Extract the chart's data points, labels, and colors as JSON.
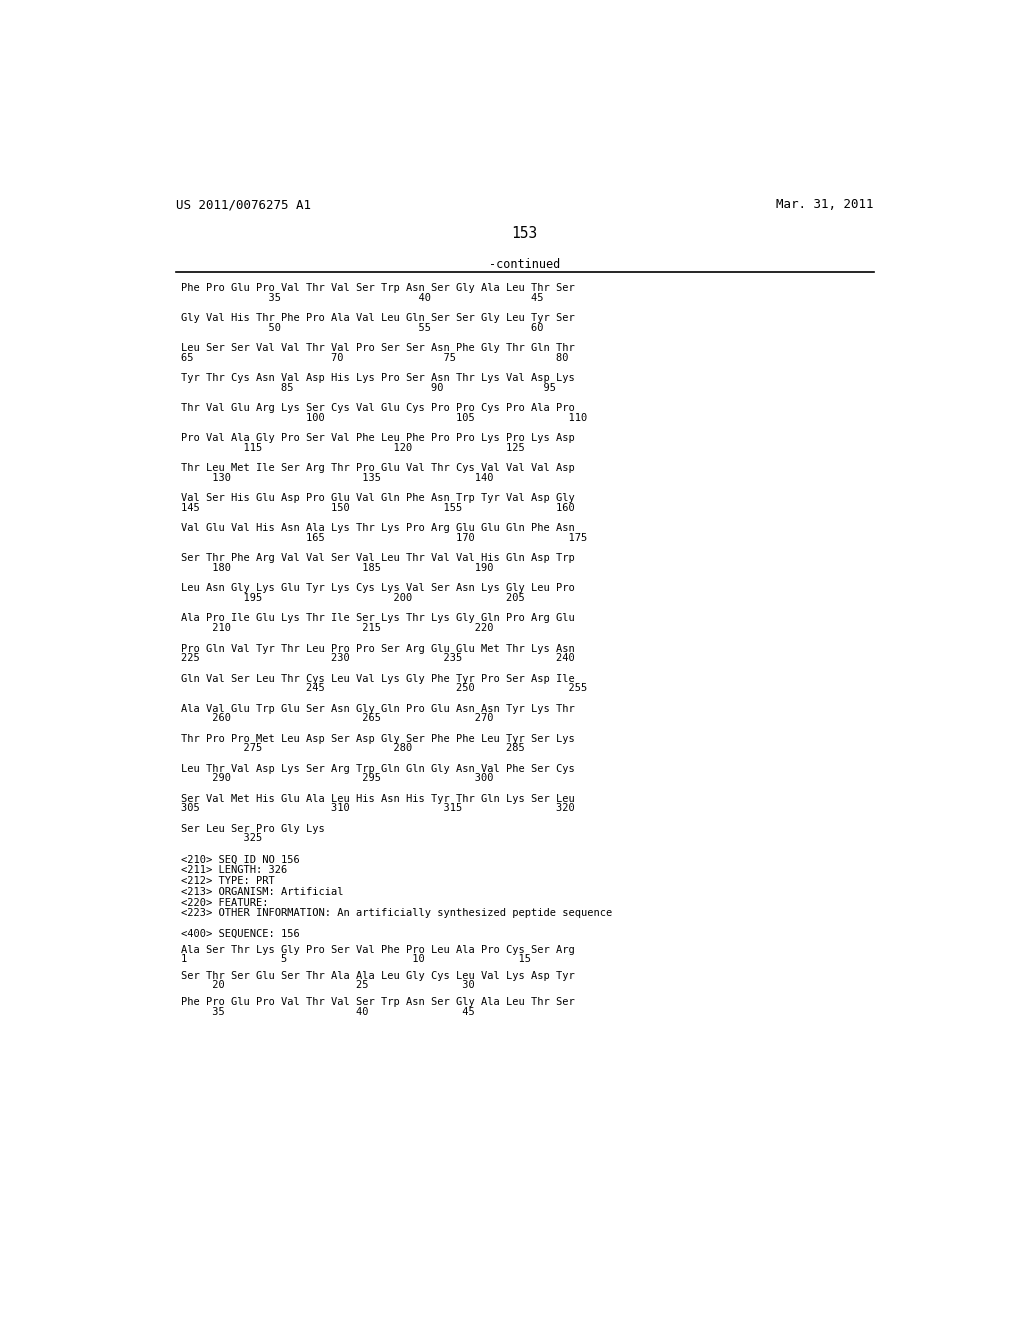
{
  "header_left": "US 2011/0076275 A1",
  "header_right": "Mar. 31, 2011",
  "page_number": "153",
  "continued_label": "-continued",
  "background_color": "#ffffff",
  "text_color": "#000000",
  "seq_font_size": 7.5,
  "header_font_size": 9.0,
  "page_font_size": 10.5,
  "seq_blocks": [
    [
      "Phe Pro Glu Pro Val Thr Val Ser Trp Asn Ser Gly Ala Leu Thr Ser",
      "              35                      40                45"
    ],
    [
      "Gly Val His Thr Phe Pro Ala Val Leu Gln Ser Ser Gly Leu Tyr Ser",
      "              50                      55                60"
    ],
    [
      "Leu Ser Ser Val Val Thr Val Pro Ser Ser Asn Phe Gly Thr Gln Thr",
      "65                      70                75                80"
    ],
    [
      "Tyr Thr Cys Asn Val Asp His Lys Pro Ser Asn Thr Lys Val Asp Lys",
      "                85                      90                95"
    ],
    [
      "Thr Val Glu Arg Lys Ser Cys Val Glu Cys Pro Pro Cys Pro Ala Pro",
      "                    100                     105               110"
    ],
    [
      "Pro Val Ala Gly Pro Ser Val Phe Leu Phe Pro Pro Lys Pro Lys Asp",
      "          115                     120               125"
    ],
    [
      "Thr Leu Met Ile Ser Arg Thr Pro Glu Val Thr Cys Val Val Val Asp",
      "     130                     135               140"
    ],
    [
      "Val Ser His Glu Asp Pro Glu Val Gln Phe Asn Trp Tyr Val Asp Gly",
      "145                     150               155               160"
    ],
    [
      "Val Glu Val His Asn Ala Lys Thr Lys Pro Arg Glu Glu Gln Phe Asn",
      "                    165                     170               175"
    ],
    [
      "Ser Thr Phe Arg Val Val Ser Val Leu Thr Val Val His Gln Asp Trp",
      "     180                     185               190"
    ],
    [
      "Leu Asn Gly Lys Glu Tyr Lys Cys Lys Val Ser Asn Lys Gly Leu Pro",
      "          195                     200               205"
    ],
    [
      "Ala Pro Ile Glu Lys Thr Ile Ser Lys Thr Lys Gly Gln Pro Arg Glu",
      "     210                     215               220"
    ],
    [
      "Pro Gln Val Tyr Thr Leu Pro Pro Ser Arg Glu Glu Met Thr Lys Asn",
      "225                     230               235               240"
    ],
    [
      "Gln Val Ser Leu Thr Cys Leu Val Lys Gly Phe Tyr Pro Ser Asp Ile",
      "                    245                     250               255"
    ],
    [
      "Ala Val Glu Trp Glu Ser Asn Gly Gln Pro Glu Asn Asn Tyr Lys Thr",
      "     260                     265               270"
    ],
    [
      "Thr Pro Pro Met Leu Asp Ser Asp Gly Ser Phe Phe Leu Tyr Ser Lys",
      "          275                     280               285"
    ],
    [
      "Leu Thr Val Asp Lys Ser Arg Trp Gln Gln Gly Asn Val Phe Ser Cys",
      "     290                     295               300"
    ],
    [
      "Ser Val Met His Glu Ala Leu His Asn His Tyr Thr Gln Lys Ser Leu",
      "305                     310               315               320"
    ],
    [
      "Ser Leu Ser Pro Gly Lys",
      "          325"
    ]
  ],
  "meta_lines": [
    "<210> SEQ ID NO 156",
    "<211> LENGTH: 326",
    "<212> TYPE: PRT",
    "<213> ORGANISM: Artificial",
    "<220> FEATURE:",
    "<223> OTHER INFORMATION: An artificially synthesized peptide sequence"
  ],
  "seq400_label": "<400> SEQUENCE: 156",
  "seq156_blocks": [
    [
      "Ala Ser Thr Lys Gly Pro Ser Val Phe Pro Leu Ala Pro Cys Ser Arg",
      "1               5                    10               15"
    ],
    [
      "Ser Thr Ser Glu Ser Thr Ala Ala Leu Gly Cys Leu Val Lys Asp Tyr",
      "     20                     25               30"
    ],
    [
      "Phe Pro Glu Pro Val Thr Val Ser Trp Asn Ser Gly Ala Leu Thr Ser",
      "     35                     40               45"
    ]
  ]
}
